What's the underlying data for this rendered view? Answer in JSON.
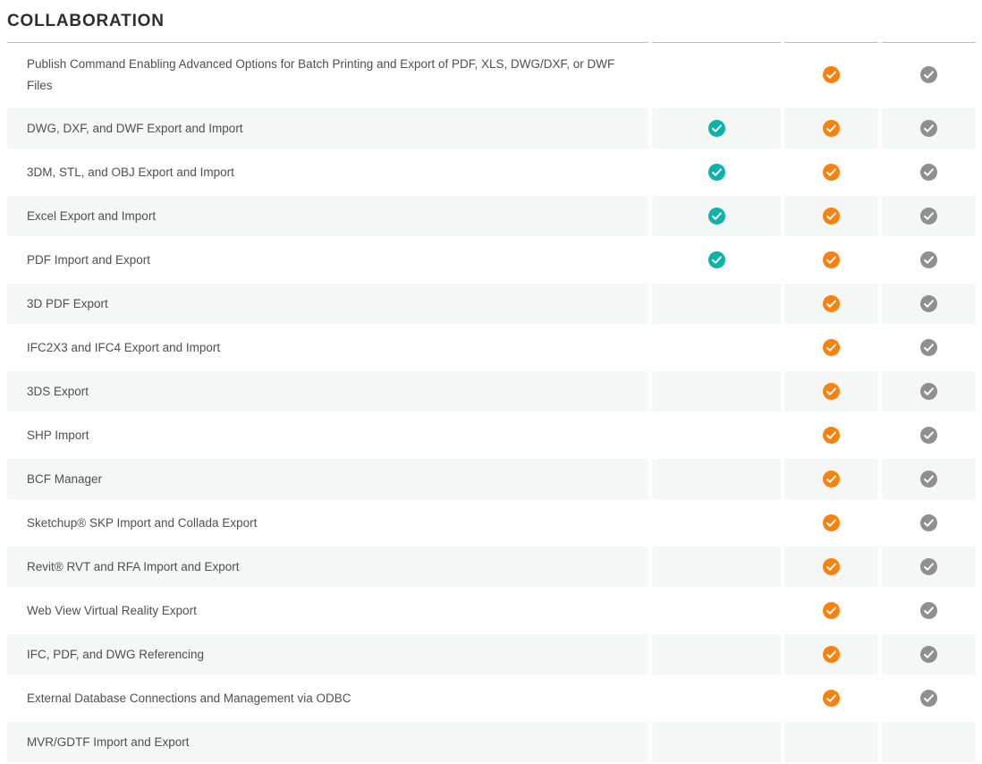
{
  "page": {
    "title": "COLLABORATION"
  },
  "colors": {
    "title_text": "#2d2d2d",
    "row_text": "#4f4f4f",
    "row_alt_bg": "#f5f6f6",
    "column_top_border": "#bdbdbd",
    "check_mark_stroke": "#ffffff",
    "column_check_colors": [
      "#0db2aa",
      "#f8820d",
      "#8f8f8f"
    ]
  },
  "table": {
    "columns": [
      {
        "name": "column-1",
        "check_style": "teal",
        "check_color": "#0db2aa"
      },
      {
        "name": "column-2",
        "check_style": "orange",
        "check_color": "#f8820d"
      },
      {
        "name": "column-3",
        "check_style": "gray",
        "check_color": "#8f8f8f"
      }
    ],
    "rows": [
      {
        "label": "Publish Command Enabling Advanced Options for Batch Printing and Export of PDF, XLS, DWG/DXF, or DWF Files",
        "checks": [
          false,
          true,
          true
        ]
      },
      {
        "label": "DWG, DXF, and DWF Export and Import",
        "checks": [
          true,
          true,
          true
        ]
      },
      {
        "label": "3DM, STL, and OBJ Export and Import",
        "checks": [
          true,
          true,
          true
        ]
      },
      {
        "label": "Excel Export and Import",
        "checks": [
          true,
          true,
          true
        ]
      },
      {
        "label": "PDF Import and Export",
        "checks": [
          true,
          true,
          true
        ]
      },
      {
        "label": "3D PDF Export",
        "checks": [
          false,
          true,
          true
        ]
      },
      {
        "label": "IFC2X3 and IFC4 Export and Import",
        "checks": [
          false,
          true,
          true
        ]
      },
      {
        "label": "3DS Export",
        "checks": [
          false,
          true,
          true
        ]
      },
      {
        "label": "SHP Import",
        "checks": [
          false,
          true,
          true
        ]
      },
      {
        "label": "BCF Manager",
        "checks": [
          false,
          true,
          true
        ]
      },
      {
        "label": "Sketchup® SKP Import and Collada Export",
        "checks": [
          false,
          true,
          true
        ]
      },
      {
        "label": "Revit® RVT and RFA Import and Export",
        "checks": [
          false,
          true,
          true
        ]
      },
      {
        "label": "Web View Virtual Reality Export",
        "checks": [
          false,
          true,
          true
        ]
      },
      {
        "label": "IFC, PDF, and DWG Referencing",
        "checks": [
          false,
          true,
          true
        ]
      },
      {
        "label": "External Database Connections and Management via ODBC",
        "checks": [
          false,
          true,
          true
        ]
      },
      {
        "label": "MVR/GDTF Import and Export",
        "checks": [
          false,
          false,
          false
        ]
      }
    ]
  }
}
